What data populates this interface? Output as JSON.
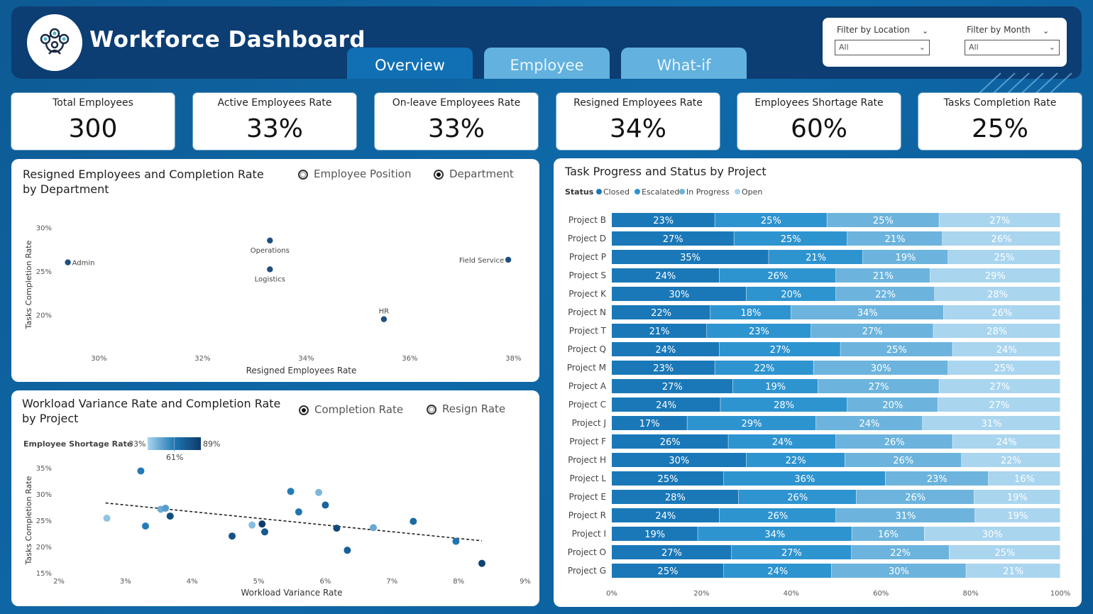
{
  "app": {
    "title": "Workforce Dashboard",
    "logo_icon": "team-network-icon"
  },
  "tabs": [
    {
      "label": "Overview",
      "active": true
    },
    {
      "label": "Employee",
      "active": false
    },
    {
      "label": "What-if",
      "active": false
    }
  ],
  "filters": {
    "location": {
      "label": "Filter by Location",
      "value": "All"
    },
    "month": {
      "label": "Filter by Month",
      "value": "All"
    }
  },
  "kpis": [
    {
      "label": "Total Employees",
      "value": "300"
    },
    {
      "label": "Active Employees Rate",
      "value": "33%"
    },
    {
      "label": "On-leave Employees Rate",
      "value": "33%"
    },
    {
      "label": "Resigned Employees Rate",
      "value": "34%"
    },
    {
      "label": "Employees Shortage Rate",
      "value": "60%"
    },
    {
      "label": "Tasks Completion Rate",
      "value": "25%"
    }
  ],
  "panel1": {
    "title_line1": "Resigned Employees and Completion Rate",
    "title_line2": "by Department",
    "radio1": "Employee Position",
    "radio2": "Department"
  },
  "panel2": {
    "title_line1": "Workload Variance Rate and Completion Rate",
    "title_line2": "by Project",
    "radio1": "Completion Rate",
    "radio2": "Resign Rate",
    "legend_title": "Employee Shortage Rate",
    "legend_min": "33%",
    "legend_mid": "61%",
    "legend_max": "89%"
  },
  "panel3": {
    "title": "Task Progress and Status by Project",
    "legend_title": "Status"
  },
  "chart_data": [
    {
      "type": "scatter",
      "xlabel": "Resigned Employees Rate",
      "ylabel": "Tasks Completion Rate",
      "xlim": [
        29.2,
        38.2
      ],
      "ylim": [
        18.5,
        31
      ],
      "xticks": [
        30,
        32,
        34,
        36,
        38
      ],
      "yticks": [
        20,
        25,
        30
      ],
      "tick_suffix": "%",
      "points": [
        {
          "label": "Admin",
          "x": 29.4,
          "y": 26.0
        },
        {
          "label": "Operations",
          "x": 33.3,
          "y": 28.5
        },
        {
          "label": "Logistics",
          "x": 33.3,
          "y": 25.2
        },
        {
          "label": "Field Service",
          "x": 37.9,
          "y": 26.3
        },
        {
          "label": "HR",
          "x": 35.5,
          "y": 19.5
        }
      ],
      "color": "#1f4f7f"
    },
    {
      "type": "scatter",
      "xlabel": "Workload Variance Rate",
      "ylabel": "Tasks Completion Rate",
      "xlim": [
        2,
        9
      ],
      "ylim": [
        15,
        35
      ],
      "xticks": [
        2,
        3,
        4,
        5,
        6,
        7,
        8,
        9
      ],
      "yticks": [
        15,
        20,
        25,
        30,
        35
      ],
      "tick_suffix": "%",
      "trendline": [
        [
          2.7,
          28.3
        ],
        [
          8.35,
          21.1
        ]
      ],
      "points": [
        {
          "x": 2.72,
          "y": 25.4,
          "shortage": 38
        },
        {
          "x": 3.23,
          "y": 34.4,
          "shortage": 60
        },
        {
          "x": 3.3,
          "y": 23.9,
          "shortage": 60
        },
        {
          "x": 3.53,
          "y": 27.1,
          "shortage": 45
        },
        {
          "x": 3.6,
          "y": 27.3,
          "shortage": 50
        },
        {
          "x": 3.67,
          "y": 25.8,
          "shortage": 80
        },
        {
          "x": 4.6,
          "y": 22.0,
          "shortage": 78
        },
        {
          "x": 4.9,
          "y": 24.1,
          "shortage": 40
        },
        {
          "x": 5.05,
          "y": 24.3,
          "shortage": 88
        },
        {
          "x": 5.09,
          "y": 22.8,
          "shortage": 75
        },
        {
          "x": 5.48,
          "y": 30.5,
          "shortage": 60
        },
        {
          "x": 5.6,
          "y": 26.6,
          "shortage": 62
        },
        {
          "x": 5.9,
          "y": 30.3,
          "shortage": 42
        },
        {
          "x": 6.0,
          "y": 27.9,
          "shortage": 70
        },
        {
          "x": 6.17,
          "y": 23.5,
          "shortage": 82
        },
        {
          "x": 6.33,
          "y": 19.3,
          "shortage": 72
        },
        {
          "x": 6.72,
          "y": 23.6,
          "shortage": 46
        },
        {
          "x": 7.32,
          "y": 24.8,
          "shortage": 68
        },
        {
          "x": 7.96,
          "y": 21.0,
          "shortage": 62
        },
        {
          "x": 8.35,
          "y": 16.8,
          "shortage": 85
        }
      ],
      "color_scale": [
        "#a9d4ee",
        "#1f78b4",
        "#0d3a6b"
      ]
    },
    {
      "type": "bar",
      "orientation": "horizontal",
      "stacked": "100%",
      "xticks": [
        "0%",
        "20%",
        "40%",
        "60%",
        "80%",
        "100%"
      ],
      "series": [
        {
          "name": "Closed",
          "color": "#1a78b8"
        },
        {
          "name": "Escalated",
          "color": "#2e94d0"
        },
        {
          "name": "In Progress",
          "color": "#6cb4dd"
        },
        {
          "name": "Open",
          "color": "#a9d5ef"
        }
      ],
      "categories": [
        "Project B",
        "Project D",
        "Project P",
        "Project S",
        "Project K",
        "Project N",
        "Project T",
        "Project Q",
        "Project M",
        "Project A",
        "Project C",
        "Project J",
        "Project F",
        "Project H",
        "Project L",
        "Project E",
        "Project R",
        "Project I",
        "Project O",
        "Project G"
      ],
      "values": [
        [
          23,
          25,
          25,
          27
        ],
        [
          27,
          25,
          21,
          26
        ],
        [
          35,
          21,
          19,
          25
        ],
        [
          24,
          26,
          21,
          29
        ],
        [
          30,
          20,
          22,
          28
        ],
        [
          22,
          18,
          34,
          26
        ],
        [
          21,
          23,
          27,
          28
        ],
        [
          24,
          27,
          25,
          24
        ],
        [
          23,
          22,
          30,
          25
        ],
        [
          27,
          19,
          27,
          27
        ],
        [
          24,
          28,
          20,
          27
        ],
        [
          17,
          29,
          24,
          31
        ],
        [
          26,
          24,
          26,
          24
        ],
        [
          30,
          22,
          26,
          22
        ],
        [
          25,
          36,
          23,
          16
        ],
        [
          28,
          26,
          26,
          19
        ],
        [
          24,
          26,
          31,
          19
        ],
        [
          19,
          34,
          16,
          30
        ],
        [
          27,
          27,
          22,
          25
        ],
        [
          25,
          24,
          30,
          21
        ]
      ]
    }
  ]
}
